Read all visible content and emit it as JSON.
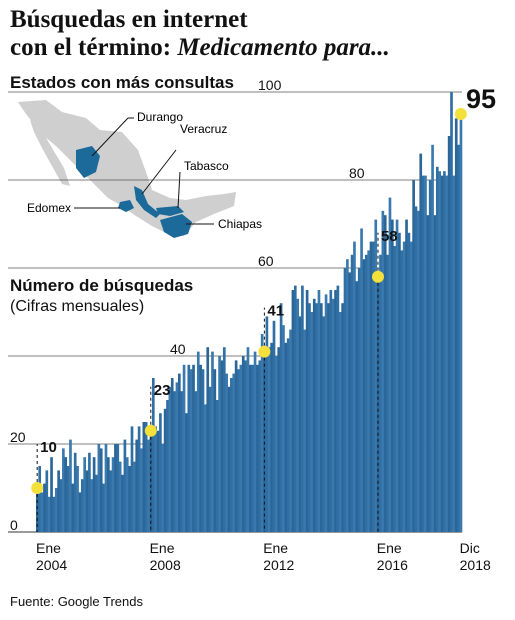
{
  "header": {
    "title_line1": "Búsquedas en internet",
    "title_line2_prefix": "con el término: ",
    "title_line2_em": "Medicamento para..."
  },
  "map": {
    "heading": "Estados con más consultas",
    "states": [
      "Durango",
      "Veracruz",
      "Tabasco",
      "Edomex",
      "Chiapas"
    ],
    "highlight_color": "#1b6a9a",
    "base_color": "#cfcfcf"
  },
  "chart_heading": "Número de búsquedas",
  "chart_subheading": "(Cifras mensuales)",
  "source": "Fuente: Google Trends",
  "chart_data": {
    "type": "bar",
    "ylim": [
      0,
      100
    ],
    "y_ticks": [
      0,
      20,
      40,
      60,
      80,
      100
    ],
    "x_ticks": [
      {
        "label_top": "Ene",
        "label_bottom": "2004",
        "month_index": 0
      },
      {
        "label_top": "Ene",
        "label_bottom": "2008",
        "month_index": 48
      },
      {
        "label_top": "Ene",
        "label_bottom": "2012",
        "month_index": 96
      },
      {
        "label_top": "Ene",
        "label_bottom": "2016",
        "month_index": 144
      },
      {
        "label_top": "Dic",
        "label_bottom": "2018",
        "month_index": 179
      }
    ],
    "annotations": [
      {
        "month_index": 0,
        "value": 10,
        "label": "10"
      },
      {
        "month_index": 48,
        "value": 23,
        "label": "23"
      },
      {
        "month_index": 96,
        "value": 41,
        "label": "41"
      },
      {
        "month_index": 144,
        "value": 58,
        "label": "58"
      },
      {
        "month_index": 179,
        "value": 95,
        "label": "95"
      }
    ],
    "values": [
      10,
      15,
      9,
      11,
      14,
      8,
      17,
      8,
      10,
      14,
      12,
      19,
      17,
      15,
      21,
      11,
      18,
      15,
      9,
      12,
      17,
      14,
      18,
      12,
      17,
      13,
      20,
      19,
      11,
      20,
      17,
      14,
      17,
      20,
      20,
      16,
      13,
      21,
      17,
      15,
      24,
      16,
      21,
      24,
      19,
      25,
      25,
      21,
      23,
      35,
      24,
      23,
      27,
      20,
      28,
      30,
      33,
      35,
      32,
      34,
      36,
      32,
      38,
      27,
      38,
      37,
      38,
      32,
      41,
      38,
      37,
      29,
      42,
      33,
      41,
      37,
      30,
      40,
      39,
      42,
      36,
      33,
      35,
      36,
      39,
      37,
      38,
      40,
      39,
      42,
      38,
      38,
      41,
      38,
      39,
      45,
      41,
      49,
      42,
      43,
      48,
      40,
      42,
      52,
      47,
      43,
      44,
      46,
      55,
      56,
      53,
      49,
      56,
      46,
      55,
      52,
      50,
      53,
      52,
      55,
      52,
      49,
      54,
      52,
      55,
      53,
      55,
      56,
      50,
      52,
      60,
      62,
      59,
      63,
      66,
      57,
      60,
      69,
      62,
      63,
      64,
      66,
      66,
      71,
      58,
      63,
      73,
      72,
      63,
      76,
      71,
      65,
      71,
      68,
      64,
      66,
      71,
      68,
      66,
      80,
      74,
      73,
      86,
      81,
      81,
      72,
      80,
      88,
      72,
      83,
      82,
      81,
      82,
      81,
      90,
      100,
      81,
      94,
      88,
      95
    ],
    "bar_color": "#2f6fa4",
    "marker_color": "#f4e03a"
  }
}
